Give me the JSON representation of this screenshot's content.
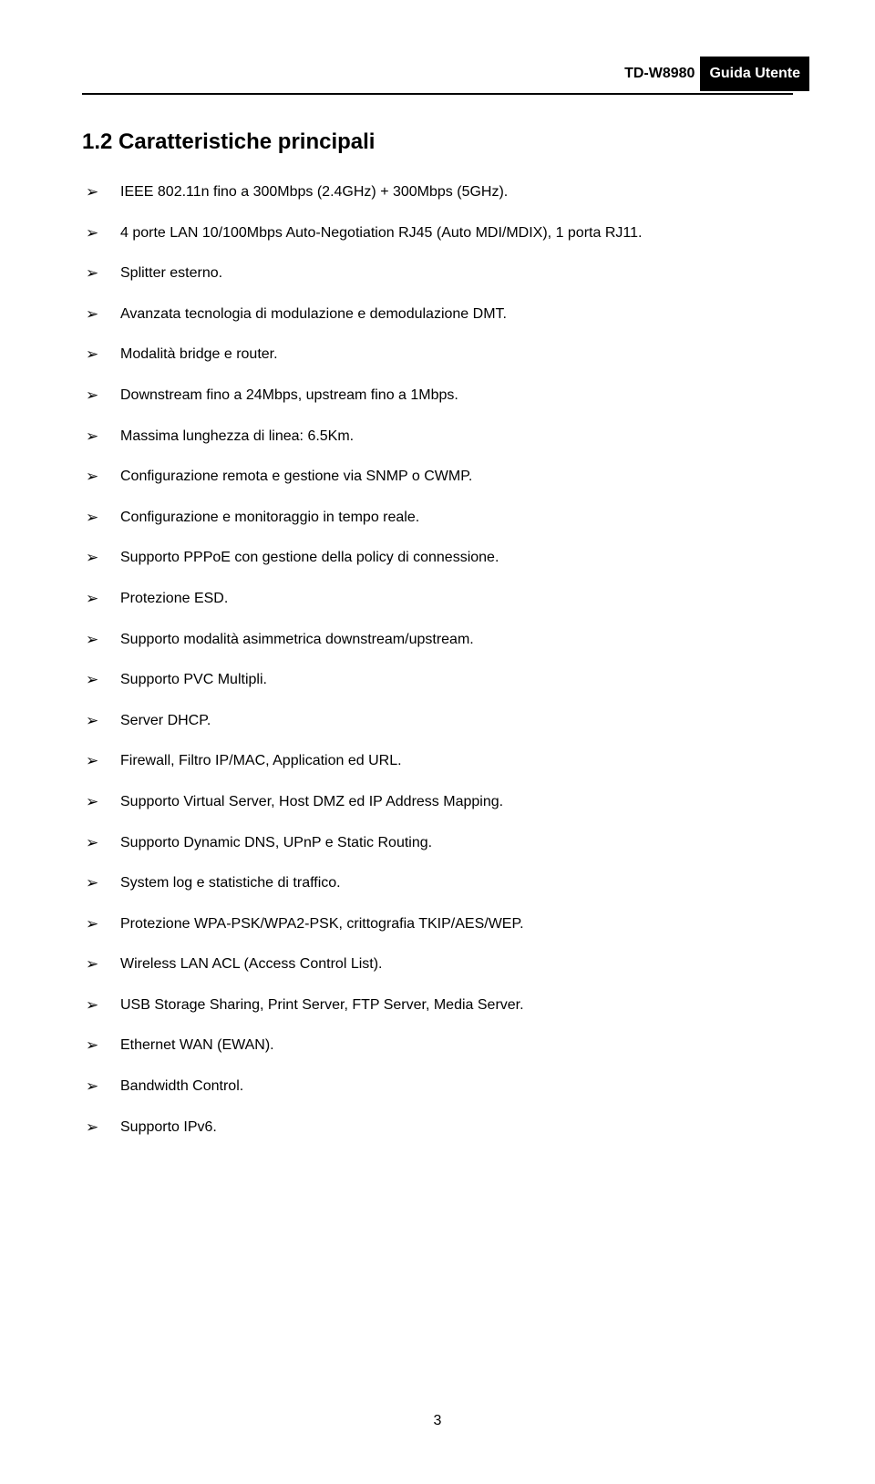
{
  "header": {
    "model": "TD-W8980",
    "badge": "Guida Utente"
  },
  "section": {
    "number": "1.2",
    "title": "Caratteristiche principali"
  },
  "features": [
    "IEEE 802.11n fino a 300Mbps (2.4GHz) + 300Mbps (5GHz).",
    "4 porte LAN 10/100Mbps Auto-Negotiation RJ45 (Auto MDI/MDIX), 1 porta RJ11.",
    "Splitter esterno.",
    "Avanzata tecnologia di modulazione e demodulazione DMT.",
    "Modalità bridge e router.",
    "Downstream fino a 24Mbps, upstream fino a 1Mbps.",
    "Massima lunghezza di linea: 6.5Km.",
    "Configurazione remota e gestione via SNMP o CWMP.",
    "Configurazione e monitoraggio in tempo reale.",
    "Supporto PPPoE con gestione della policy di connessione.",
    "Protezione ESD.",
    "Supporto modalità asimmetrica downstream/upstream.",
    "Supporto PVC Multipli.",
    "Server DHCP.",
    "Firewall, Filtro IP/MAC, Application ed URL.",
    "Supporto Virtual Server, Host DMZ ed IP Address Mapping.",
    "Supporto Dynamic DNS, UPnP e Static Routing.",
    "System log e statistiche di traffico.",
    "Protezione WPA-PSK/WPA2-PSK, crittografia TKIP/AES/WEP.",
    "Wireless LAN ACL (Access Control List).",
    "USB Storage Sharing, Print Server, FTP Server, Media Server.",
    "Ethernet WAN (EWAN).",
    "Bandwidth Control.",
    "Supporto IPv6."
  ],
  "page_number": "3"
}
